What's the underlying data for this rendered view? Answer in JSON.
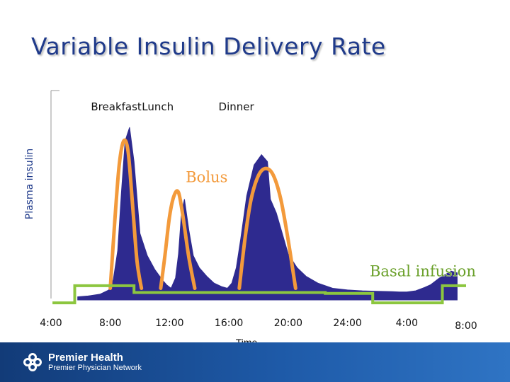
{
  "slide": {
    "title": "Variable Insulin Delivery Rate"
  },
  "footer": {
    "brand_name": "Premier Health",
    "brand_sub": "Premier Physician Network"
  },
  "colors": {
    "title": "#1f3a8a",
    "plasma": "#2e2a8f",
    "bolus": "#f39a3b",
    "basal": "#8cc63f",
    "basal_label": "#6aa02a",
    "footer": "#1a4c92"
  },
  "chart_data": {
    "type": "area",
    "title": "Variable Insulin Delivery Rate",
    "xlabel": "Time",
    "ylabel": "Plasma insulin",
    "xlim": [
      4,
      32
    ],
    "ylim": [
      0,
      100
    ],
    "x_ticks": [
      {
        "x": 4,
        "label": "4:00"
      },
      {
        "x": 8,
        "label": "8:00"
      },
      {
        "x": 12,
        "label": "12:00"
      },
      {
        "x": 16,
        "label": "16:00"
      },
      {
        "x": 20,
        "label": "20:00"
      },
      {
        "x": 24,
        "label": "24:00"
      },
      {
        "x": 28,
        "label": "4:00"
      },
      {
        "x": 32,
        "label": "8:00"
      }
    ],
    "meal_labels": [
      {
        "x": 8.4,
        "label": "Breakfast"
      },
      {
        "x": 11.2,
        "label": "Lunch"
      },
      {
        "x": 16.5,
        "label": "Dinner"
      }
    ],
    "annotations": [
      {
        "name": "bolus",
        "text": "Bolus",
        "x": 14.5,
        "y": 68
      },
      {
        "name": "basal",
        "text": "Basal infusion",
        "x": 25.5,
        "y": 13
      }
    ],
    "series": [
      {
        "name": "Plasma insulin",
        "style": "filled-area",
        "x": [
          5.8,
          6.5,
          7.3,
          7.9,
          8.2,
          8.5,
          8.75,
          9.0,
          9.3,
          9.6,
          10.0,
          10.5,
          11.0,
          11.5,
          11.8,
          12.1,
          12.4,
          12.6,
          12.8,
          13.0,
          13.3,
          13.6,
          14.0,
          14.5,
          15.0,
          15.5,
          15.9,
          16.2,
          16.5,
          16.8,
          17.2,
          17.7,
          18.2,
          18.6,
          18.8,
          19.2,
          19.6,
          20.0,
          20.6,
          21.2,
          22.0,
          23.0,
          24.0,
          25.0,
          26.0,
          27.0,
          27.5,
          28.0,
          28.6,
          29.2,
          29.6,
          30.2,
          30.6,
          31.0,
          31.4
        ],
        "y": [
          1,
          1.5,
          2.5,
          5,
          11,
          28,
          62,
          92,
          100,
          80,
          38,
          25,
          17,
          11,
          8,
          6,
          12,
          26,
          50,
          58,
          40,
          25,
          18,
          13,
          9,
          7,
          6,
          9,
          18,
          35,
          60,
          78,
          84,
          80,
          58,
          50,
          38,
          26,
          18,
          13,
          9,
          6,
          5,
          4.5,
          4.2,
          4,
          3.8,
          3.8,
          4.5,
          6.5,
          8,
          12,
          14,
          16,
          15
        ]
      },
      {
        "name": "Bolus",
        "style": "line",
        "segments": [
          {
            "x": [
              8.0,
              8.3,
              8.6,
              8.9,
              9.2,
              9.5,
              9.8,
              10.1
            ],
            "y": [
              6,
              45,
              78,
              92,
              86,
              55,
              22,
              6
            ]
          },
          {
            "x": [
              11.4,
              11.7,
              12.0,
              12.3,
              12.6,
              12.9,
              13.3,
              13.7
            ],
            "y": [
              6,
              26,
              48,
              60,
              62,
              48,
              24,
              6
            ]
          },
          {
            "x": [
              16.7,
              17.1,
              17.5,
              18.0,
              18.5,
              19.0,
              19.5,
              20.0,
              20.5
            ],
            "y": [
              6,
              36,
              58,
              72,
              76,
              72,
              58,
              34,
              6
            ]
          }
        ]
      },
      {
        "name": "Basal infusion",
        "style": "step-line",
        "x": [
          4.1,
          5.6,
          5.6,
          9.6,
          9.6,
          22.5,
          22.5,
          25.7,
          25.7,
          30.4,
          30.4,
          32.0
        ],
        "y": [
          -2.5,
          -2.5,
          7.5,
          7.5,
          3.5,
          3.5,
          3.0,
          3.0,
          -2.5,
          -2.5,
          7.5,
          7.5
        ]
      }
    ]
  }
}
